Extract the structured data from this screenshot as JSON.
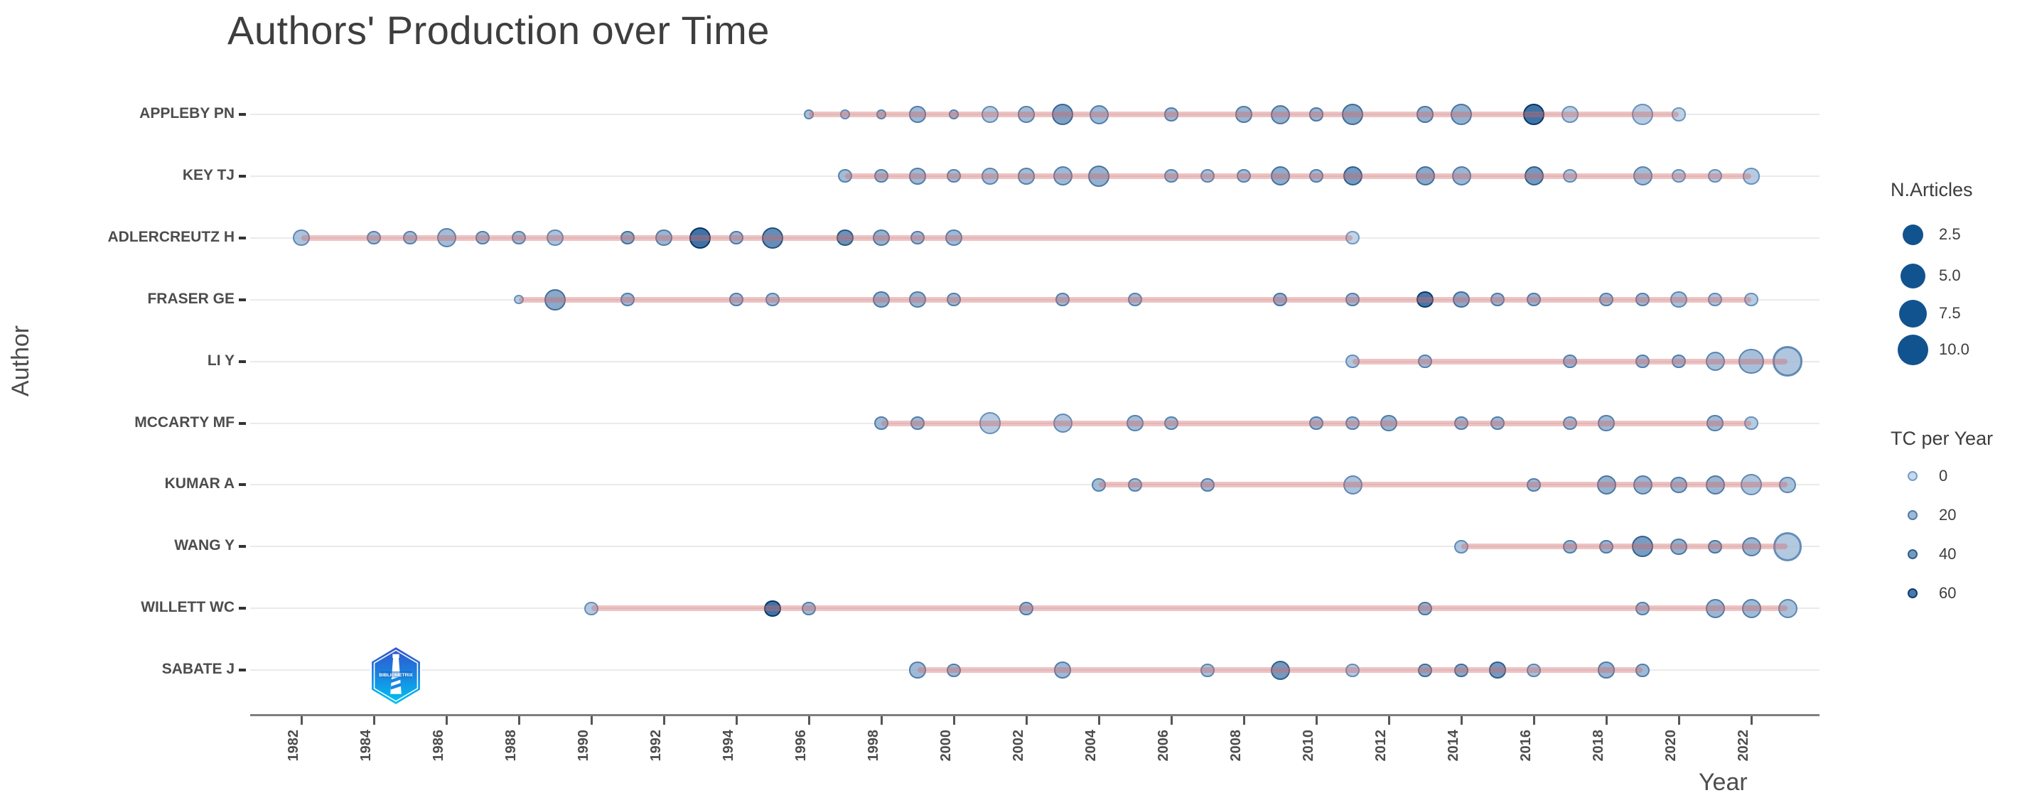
{
  "title": "Authors' Production over Time",
  "x_axis": {
    "label": "Year",
    "ticks": [
      1982,
      1984,
      1986,
      1988,
      1990,
      1992,
      1994,
      1996,
      1998,
      2000,
      2002,
      2004,
      2006,
      2008,
      2010,
      2012,
      2014,
      2016,
      2018,
      2020,
      2022
    ]
  },
  "y_axis": {
    "label": "Author"
  },
  "legend": {
    "size": {
      "title": "N.Articles",
      "items": [
        "2.5",
        "5.0",
        "7.5",
        "10.0"
      ],
      "dot_color": "#11538E"
    },
    "color": {
      "title": "TC per Year",
      "items": [
        "0",
        "20",
        "40",
        "60"
      ],
      "item_tc_values": [
        0,
        20,
        40,
        60
      ]
    }
  },
  "colors": {
    "fill_light": "#B9CEE5",
    "fill_dark": "#0A4B8C",
    "stroke_light": "#769EC7",
    "stroke_dark": "#063464",
    "pink_line": "rgba(212,106,106,0.40)",
    "grid": "#EAEAEA",
    "axis": "#7E7E7E",
    "text": "#4D4D4D"
  },
  "logo": {
    "name": "bibliometrix-logo",
    "text": "BIBLIOMETRIX"
  },
  "chart_data": {
    "type": "scatter",
    "title": "Authors' Production over Time",
    "xlabel": "Year",
    "ylabel": "Author",
    "x_range": [
      1980.6,
      2023.9
    ],
    "size_variable": "N.Articles",
    "color_variable": "TC per Year",
    "authors": [
      {
        "name": "APPLEBY PN",
        "points": [
          {
            "year": 1996,
            "n_articles": 1,
            "tc_per_year": 15
          },
          {
            "year": 1997,
            "n_articles": 1,
            "tc_per_year": 12
          },
          {
            "year": 1998,
            "n_articles": 1,
            "tc_per_year": 18
          },
          {
            "year": 1999,
            "n_articles": 3,
            "tc_per_year": 20
          },
          {
            "year": 2000,
            "n_articles": 1,
            "tc_per_year": 18
          },
          {
            "year": 2001,
            "n_articles": 3,
            "tc_per_year": 10
          },
          {
            "year": 2002,
            "n_articles": 3,
            "tc_per_year": 18
          },
          {
            "year": 2003,
            "n_articles": 5,
            "tc_per_year": 35
          },
          {
            "year": 2004,
            "n_articles": 4,
            "tc_per_year": 20
          },
          {
            "year": 2006,
            "n_articles": 2,
            "tc_per_year": 20
          },
          {
            "year": 2008,
            "n_articles": 3,
            "tc_per_year": 22
          },
          {
            "year": 2009,
            "n_articles": 4,
            "tc_per_year": 25
          },
          {
            "year": 2010,
            "n_articles": 2,
            "tc_per_year": 22
          },
          {
            "year": 2011,
            "n_articles": 5,
            "tc_per_year": 32
          },
          {
            "year": 2013,
            "n_articles": 3,
            "tc_per_year": 25
          },
          {
            "year": 2014,
            "n_articles": 5,
            "tc_per_year": 25
          },
          {
            "year": 2016,
            "n_articles": 5,
            "tc_per_year": 65
          },
          {
            "year": 2017,
            "n_articles": 3,
            "tc_per_year": 8
          },
          {
            "year": 2019,
            "n_articles": 5,
            "tc_per_year": 8
          },
          {
            "year": 2020,
            "n_articles": 2,
            "tc_per_year": 5
          }
        ]
      },
      {
        "name": "KEY TJ",
        "points": [
          {
            "year": 1997,
            "n_articles": 2,
            "tc_per_year": 18
          },
          {
            "year": 1998,
            "n_articles": 2,
            "tc_per_year": 20
          },
          {
            "year": 1999,
            "n_articles": 3,
            "tc_per_year": 20
          },
          {
            "year": 2000,
            "n_articles": 2,
            "tc_per_year": 18
          },
          {
            "year": 2001,
            "n_articles": 3,
            "tc_per_year": 15
          },
          {
            "year": 2002,
            "n_articles": 3,
            "tc_per_year": 18
          },
          {
            "year": 2003,
            "n_articles": 4,
            "tc_per_year": 20
          },
          {
            "year": 2004,
            "n_articles": 5,
            "tc_per_year": 25
          },
          {
            "year": 2006,
            "n_articles": 2,
            "tc_per_year": 18
          },
          {
            "year": 2007,
            "n_articles": 2,
            "tc_per_year": 15
          },
          {
            "year": 2008,
            "n_articles": 2,
            "tc_per_year": 18
          },
          {
            "year": 2009,
            "n_articles": 4,
            "tc_per_year": 28
          },
          {
            "year": 2010,
            "n_articles": 2,
            "tc_per_year": 20
          },
          {
            "year": 2011,
            "n_articles": 4,
            "tc_per_year": 40
          },
          {
            "year": 2013,
            "n_articles": 4,
            "tc_per_year": 30
          },
          {
            "year": 2014,
            "n_articles": 4,
            "tc_per_year": 22
          },
          {
            "year": 2016,
            "n_articles": 4,
            "tc_per_year": 40
          },
          {
            "year": 2017,
            "n_articles": 2,
            "tc_per_year": 12
          },
          {
            "year": 2019,
            "n_articles": 4,
            "tc_per_year": 18
          },
          {
            "year": 2020,
            "n_articles": 2,
            "tc_per_year": 10
          },
          {
            "year": 2021,
            "n_articles": 2,
            "tc_per_year": 10
          },
          {
            "year": 2022,
            "n_articles": 3,
            "tc_per_year": 8
          }
        ]
      },
      {
        "name": "ADLERCREUTZ H",
        "points": [
          {
            "year": 1982,
            "n_articles": 3,
            "tc_per_year": 14
          },
          {
            "year": 1984,
            "n_articles": 2,
            "tc_per_year": 18
          },
          {
            "year": 1985,
            "n_articles": 2,
            "tc_per_year": 18
          },
          {
            "year": 1986,
            "n_articles": 4,
            "tc_per_year": 18
          },
          {
            "year": 1987,
            "n_articles": 2,
            "tc_per_year": 20
          },
          {
            "year": 1988,
            "n_articles": 2,
            "tc_per_year": 18
          },
          {
            "year": 1989,
            "n_articles": 3,
            "tc_per_year": 14
          },
          {
            "year": 1991,
            "n_articles": 2,
            "tc_per_year": 28
          },
          {
            "year": 1992,
            "n_articles": 3,
            "tc_per_year": 22
          },
          {
            "year": 1993,
            "n_articles": 5,
            "tc_per_year": 65
          },
          {
            "year": 1994,
            "n_articles": 2,
            "tc_per_year": 22
          },
          {
            "year": 1995,
            "n_articles": 5,
            "tc_per_year": 48
          },
          {
            "year": 1997,
            "n_articles": 3,
            "tc_per_year": 45
          },
          {
            "year": 1998,
            "n_articles": 3,
            "tc_per_year": 25
          },
          {
            "year": 1999,
            "n_articles": 2,
            "tc_per_year": 20
          },
          {
            "year": 2000,
            "n_articles": 3,
            "tc_per_year": 20
          },
          {
            "year": 2011,
            "n_articles": 2,
            "tc_per_year": 3
          }
        ]
      },
      {
        "name": "FRASER GE",
        "points": [
          {
            "year": 1988,
            "n_articles": 1,
            "tc_per_year": 8
          },
          {
            "year": 1989,
            "n_articles": 5,
            "tc_per_year": 30
          },
          {
            "year": 1991,
            "n_articles": 2,
            "tc_per_year": 20
          },
          {
            "year": 1994,
            "n_articles": 2,
            "tc_per_year": 20
          },
          {
            "year": 1995,
            "n_articles": 2,
            "tc_per_year": 18
          },
          {
            "year": 1998,
            "n_articles": 3,
            "tc_per_year": 25
          },
          {
            "year": 1999,
            "n_articles": 3,
            "tc_per_year": 22
          },
          {
            "year": 2000,
            "n_articles": 2,
            "tc_per_year": 20
          },
          {
            "year": 2003,
            "n_articles": 2,
            "tc_per_year": 20
          },
          {
            "year": 2005,
            "n_articles": 2,
            "tc_per_year": 18
          },
          {
            "year": 2009,
            "n_articles": 2,
            "tc_per_year": 25
          },
          {
            "year": 2011,
            "n_articles": 2,
            "tc_per_year": 20
          },
          {
            "year": 2013,
            "n_articles": 3,
            "tc_per_year": 62
          },
          {
            "year": 2014,
            "n_articles": 3,
            "tc_per_year": 30
          },
          {
            "year": 2015,
            "n_articles": 2,
            "tc_per_year": 22
          },
          {
            "year": 2016,
            "n_articles": 2,
            "tc_per_year": 22
          },
          {
            "year": 2018,
            "n_articles": 2,
            "tc_per_year": 20
          },
          {
            "year": 2019,
            "n_articles": 2,
            "tc_per_year": 20
          },
          {
            "year": 2020,
            "n_articles": 3,
            "tc_per_year": 15
          },
          {
            "year": 2021,
            "n_articles": 2,
            "tc_per_year": 12
          },
          {
            "year": 2022,
            "n_articles": 2,
            "tc_per_year": 8
          }
        ]
      },
      {
        "name": "LI Y",
        "points": [
          {
            "year": 2011,
            "n_articles": 2,
            "tc_per_year": 10
          },
          {
            "year": 2013,
            "n_articles": 2,
            "tc_per_year": 18
          },
          {
            "year": 2017,
            "n_articles": 2,
            "tc_per_year": 20
          },
          {
            "year": 2019,
            "n_articles": 2,
            "tc_per_year": 20
          },
          {
            "year": 2020,
            "n_articles": 2,
            "tc_per_year": 20
          },
          {
            "year": 2021,
            "n_articles": 4,
            "tc_per_year": 16
          },
          {
            "year": 2022,
            "n_articles": 7,
            "tc_per_year": 16
          },
          {
            "year": 2023,
            "n_articles": 10,
            "tc_per_year": 12
          }
        ]
      },
      {
        "name": "MCCARTY MF",
        "points": [
          {
            "year": 1998,
            "n_articles": 2,
            "tc_per_year": 20
          },
          {
            "year": 1999,
            "n_articles": 2,
            "tc_per_year": 20
          },
          {
            "year": 2001,
            "n_articles": 5,
            "tc_per_year": 8
          },
          {
            "year": 2003,
            "n_articles": 4,
            "tc_per_year": 12
          },
          {
            "year": 2005,
            "n_articles": 3,
            "tc_per_year": 18
          },
          {
            "year": 2006,
            "n_articles": 2,
            "tc_per_year": 18
          },
          {
            "year": 2010,
            "n_articles": 2,
            "tc_per_year": 20
          },
          {
            "year": 2011,
            "n_articles": 2,
            "tc_per_year": 18
          },
          {
            "year": 2012,
            "n_articles": 3,
            "tc_per_year": 22
          },
          {
            "year": 2014,
            "n_articles": 2,
            "tc_per_year": 20
          },
          {
            "year": 2015,
            "n_articles": 2,
            "tc_per_year": 20
          },
          {
            "year": 2017,
            "n_articles": 2,
            "tc_per_year": 18
          },
          {
            "year": 2018,
            "n_articles": 3,
            "tc_per_year": 20
          },
          {
            "year": 2021,
            "n_articles": 3,
            "tc_per_year": 20
          },
          {
            "year": 2022,
            "n_articles": 2,
            "tc_per_year": 8
          }
        ]
      },
      {
        "name": "KUMAR A",
        "points": [
          {
            "year": 2004,
            "n_articles": 2,
            "tc_per_year": 18
          },
          {
            "year": 2005,
            "n_articles": 2,
            "tc_per_year": 18
          },
          {
            "year": 2007,
            "n_articles": 2,
            "tc_per_year": 20
          },
          {
            "year": 2011,
            "n_articles": 4,
            "tc_per_year": 14
          },
          {
            "year": 2016,
            "n_articles": 2,
            "tc_per_year": 20
          },
          {
            "year": 2018,
            "n_articles": 4,
            "tc_per_year": 25
          },
          {
            "year": 2019,
            "n_articles": 4,
            "tc_per_year": 22
          },
          {
            "year": 2020,
            "n_articles": 3,
            "tc_per_year": 22
          },
          {
            "year": 2021,
            "n_articles": 4,
            "tc_per_year": 22
          },
          {
            "year": 2022,
            "n_articles": 5,
            "tc_per_year": 12
          },
          {
            "year": 2023,
            "n_articles": 3,
            "tc_per_year": 15
          }
        ]
      },
      {
        "name": "WANG Y",
        "points": [
          {
            "year": 2014,
            "n_articles": 2,
            "tc_per_year": 12
          },
          {
            "year": 2017,
            "n_articles": 2,
            "tc_per_year": 20
          },
          {
            "year": 2018,
            "n_articles": 2,
            "tc_per_year": 22
          },
          {
            "year": 2019,
            "n_articles": 5,
            "tc_per_year": 38
          },
          {
            "year": 2020,
            "n_articles": 3,
            "tc_per_year": 25
          },
          {
            "year": 2021,
            "n_articles": 2,
            "tc_per_year": 25
          },
          {
            "year": 2022,
            "n_articles": 4,
            "tc_per_year": 22
          },
          {
            "year": 2023,
            "n_articles": 9,
            "tc_per_year": 10
          }
        ]
      },
      {
        "name": "WILLETT WC",
        "points": [
          {
            "year": 1990,
            "n_articles": 2,
            "tc_per_year": 10
          },
          {
            "year": 1995,
            "n_articles": 3,
            "tc_per_year": 65
          },
          {
            "year": 1996,
            "n_articles": 2,
            "tc_per_year": 20
          },
          {
            "year": 2002,
            "n_articles": 2,
            "tc_per_year": 22
          },
          {
            "year": 2013,
            "n_articles": 2,
            "tc_per_year": 25
          },
          {
            "year": 2019,
            "n_articles": 2,
            "tc_per_year": 20
          },
          {
            "year": 2021,
            "n_articles": 4,
            "tc_per_year": 22
          },
          {
            "year": 2022,
            "n_articles": 4,
            "tc_per_year": 20
          },
          {
            "year": 2023,
            "n_articles": 4,
            "tc_per_year": 15
          }
        ]
      },
      {
        "name": "SABATE J",
        "points": [
          {
            "year": 1999,
            "n_articles": 3,
            "tc_per_year": 20
          },
          {
            "year": 2000,
            "n_articles": 2,
            "tc_per_year": 20
          },
          {
            "year": 2003,
            "n_articles": 3,
            "tc_per_year": 20
          },
          {
            "year": 2007,
            "n_articles": 2,
            "tc_per_year": 15
          },
          {
            "year": 2009,
            "n_articles": 4,
            "tc_per_year": 40
          },
          {
            "year": 2011,
            "n_articles": 2,
            "tc_per_year": 10
          },
          {
            "year": 2013,
            "n_articles": 2,
            "tc_per_year": 30
          },
          {
            "year": 2014,
            "n_articles": 2,
            "tc_per_year": 30
          },
          {
            "year": 2015,
            "n_articles": 3,
            "tc_per_year": 40
          },
          {
            "year": 2016,
            "n_articles": 2,
            "tc_per_year": 15
          },
          {
            "year": 2018,
            "n_articles": 3,
            "tc_per_year": 22
          },
          {
            "year": 2019,
            "n_articles": 2,
            "tc_per_year": 20
          }
        ]
      }
    ]
  }
}
